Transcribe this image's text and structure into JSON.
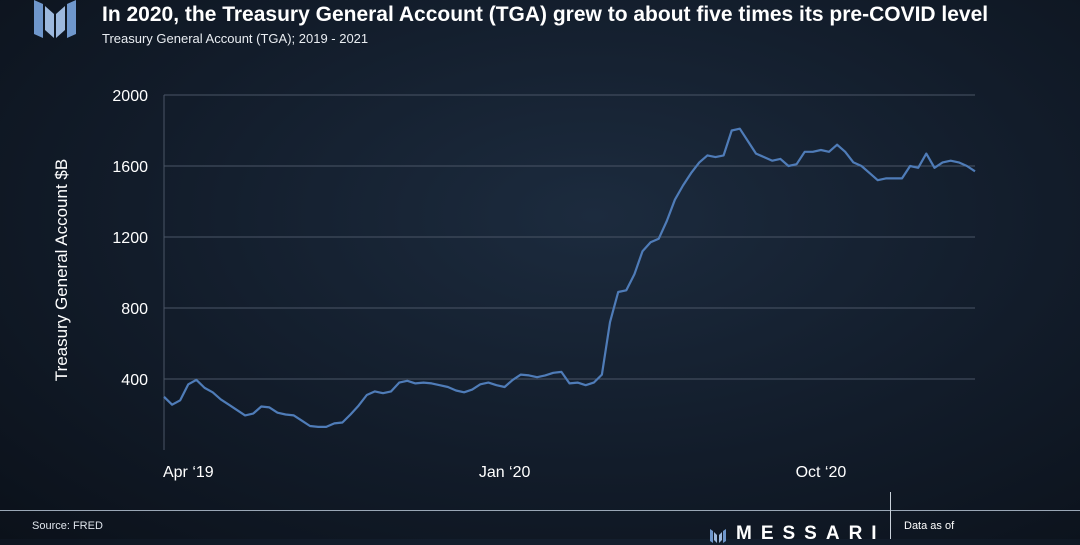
{
  "header": {
    "title": "In 2020, the Treasury General Account (TGA) grew to about five times its pre-COVID level",
    "subtitle": "Treasury General Account (TGA); 2019 - 2021"
  },
  "footer": {
    "source": "Source: FRED",
    "brand": "MESSARI",
    "data_as_of": "Data as of"
  },
  "colors": {
    "line": "#4f7cb8",
    "grid": "#4a5566",
    "axis_text": "#ffffff",
    "logo": "#6f97cc"
  },
  "chart_data": {
    "type": "line",
    "title": "In 2020, the Treasury General Account (TGA) grew to about five times its pre-COVID level",
    "subtitle": "Treasury General Account (TGA); 2019 - 2021",
    "xlabel": "",
    "ylabel": "Treasury General Account $B",
    "ylim": [
      0,
      2000
    ],
    "yticks": [
      400,
      800,
      1200,
      1600,
      2000
    ],
    "xtick_labels": [
      "Apr ‘19",
      "Jan ‘20",
      "Oct ‘20"
    ],
    "xtick_index": [
      3,
      42,
      81
    ],
    "grid": "horizontal",
    "legend": "none",
    "series": [
      {
        "values": [
          300,
          255,
          280,
          370,
          395,
          350,
          325,
          285,
          255,
          225,
          195,
          205,
          245,
          240,
          210,
          200,
          195,
          165,
          135,
          130,
          130,
          150,
          155,
          200,
          250,
          310,
          330,
          320,
          330,
          380,
          390,
          375,
          380,
          375,
          365,
          355,
          335,
          325,
          340,
          370,
          380,
          365,
          355,
          395,
          425,
          420,
          410,
          420,
          435,
          440,
          375,
          380,
          365,
          380,
          425,
          720,
          890,
          900,
          990,
          1120,
          1170,
          1190,
          1290,
          1410,
          1490,
          1560,
          1620,
          1660,
          1650,
          1660,
          1800,
          1810,
          1740,
          1670,
          1650,
          1630,
          1640,
          1600,
          1610,
          1680,
          1680,
          1690,
          1680,
          1720,
          1680,
          1620,
          1600,
          1560,
          1520,
          1530,
          1530,
          1530,
          1600,
          1590,
          1670,
          1590,
          1620,
          1630,
          1620,
          1600,
          1570
        ]
      }
    ]
  }
}
